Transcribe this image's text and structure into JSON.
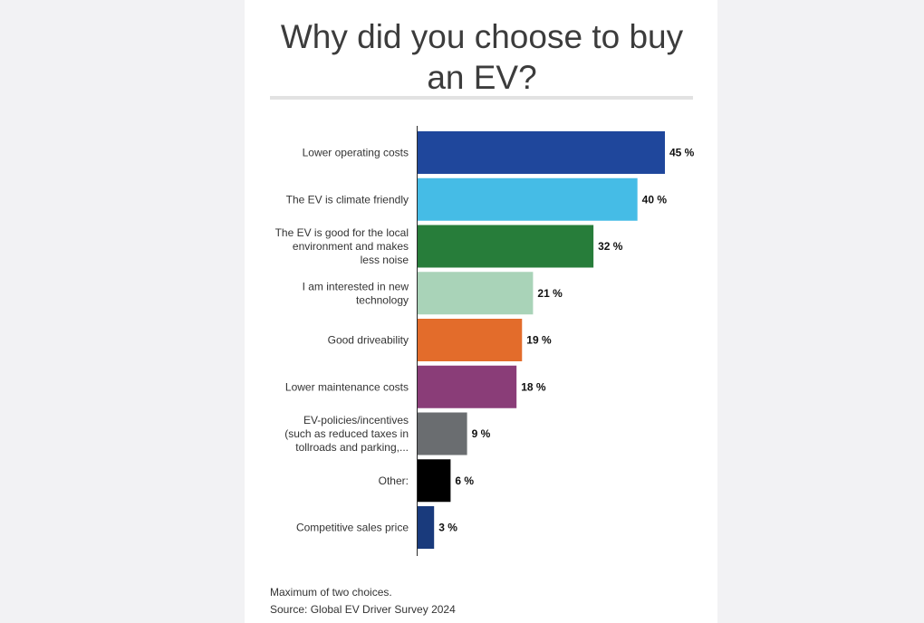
{
  "chart_data": {
    "type": "bar",
    "orientation": "horizontal",
    "title": "Why did you choose to buy an EV?",
    "categories": [
      [
        "Lower operating costs"
      ],
      [
        "The EV is climate friendly"
      ],
      [
        "The EV is good for the local",
        "environment and makes",
        "less noise"
      ],
      [
        "I am interested in new",
        "technology"
      ],
      [
        "Good driveability"
      ],
      [
        "Lower maintenance costs"
      ],
      [
        "EV-policies/incentives",
        "(such as reduced taxes in",
        "tollroads and parking,..."
      ],
      [
        "Other:"
      ],
      [
        "Competitive sales price"
      ]
    ],
    "values": [
      45,
      40,
      32,
      21,
      19,
      18,
      9,
      6,
      3
    ],
    "value_suffix": " %",
    "colors": [
      "#1f479c",
      "#45bce6",
      "#277d3a",
      "#a9d3b8",
      "#e36c2b",
      "#8a3d78",
      "#6a6d70",
      "#000000",
      "#193a7c"
    ],
    "xlim": [
      0,
      45
    ],
    "grid": false
  },
  "footnotes": {
    "note": "Maximum of two choices.",
    "source": "Source: Global EV Driver Survey 2024"
  }
}
